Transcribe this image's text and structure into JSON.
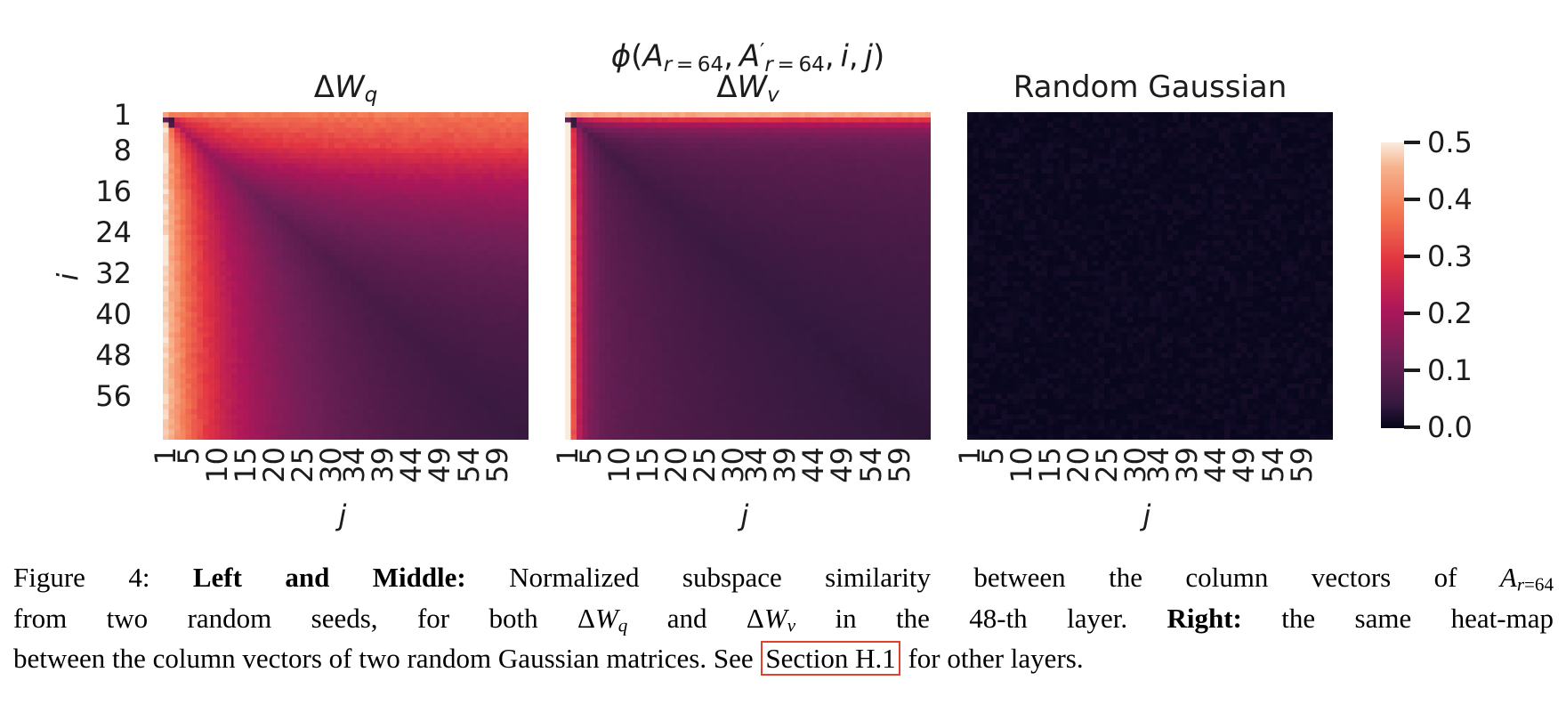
{
  "figure": {
    "titles": {
      "dwq": [
        {
          "t": "Δ",
          "s": "n"
        },
        {
          "t": "W",
          "s": "i"
        },
        {
          "t": "q",
          "s": "subi"
        }
      ],
      "phi_line": [
        {
          "t": "ϕ",
          "s": "i"
        },
        {
          "t": "(",
          "s": "n"
        },
        {
          "t": "A",
          "s": "i"
        },
        {
          "t": "r",
          "s": "subi"
        },
        {
          "t": " = 64",
          "s": "sub"
        },
        {
          "t": ", ",
          "s": "n"
        },
        {
          "t": "A",
          "s": "i"
        },
        {
          "t": "′",
          "s": "sup"
        },
        {
          "t": "r",
          "s": "subi"
        },
        {
          "t": " = 64",
          "s": "sub"
        },
        {
          "t": ", ",
          "s": "n"
        },
        {
          "t": "i",
          "s": "i"
        },
        {
          "t": ", ",
          "s": "n"
        },
        {
          "t": "j",
          "s": "i"
        },
        {
          "t": ")",
          "s": "n"
        }
      ],
      "dwv": [
        {
          "t": "Δ",
          "s": "n"
        },
        {
          "t": "W",
          "s": "i"
        },
        {
          "t": "v",
          "s": "subi"
        }
      ],
      "gaussian": [
        {
          "t": "Random Gaussian",
          "s": "n"
        }
      ]
    },
    "axis": {
      "ylabel": "i",
      "xlabel": "j"
    },
    "caption": {
      "line1": [
        {
          "t": "Figure 4: ",
          "s": "n"
        },
        {
          "t": "Left and Middle: ",
          "s": "b"
        },
        {
          "t": "Normalized subspace similarity between the column vectors of ",
          "s": "n"
        },
        {
          "t": "A",
          "s": "i"
        },
        {
          "t": "r",
          "s": "subi"
        },
        {
          "t": "=64",
          "s": "sub"
        }
      ],
      "line2": [
        {
          "t": "from two random seeds, for both ",
          "s": "n"
        },
        {
          "t": "Δ",
          "s": "n"
        },
        {
          "t": "W",
          "s": "i"
        },
        {
          "t": "q",
          "s": "subi"
        },
        {
          "t": " and ",
          "s": "n"
        },
        {
          "t": "Δ",
          "s": "n"
        },
        {
          "t": "W",
          "s": "i"
        },
        {
          "t": "v",
          "s": "subi"
        },
        {
          "t": " in the 48-th layer. ",
          "s": "n"
        },
        {
          "t": "Right: ",
          "s": "b"
        },
        {
          "t": "the same heat-map",
          "s": "n"
        }
      ],
      "line3": [
        {
          "t": "between the column vectors of two random Gaussian matrices. See ",
          "s": "n"
        },
        {
          "t": "Section H.1",
          "s": "box"
        },
        {
          "t": " for other layers.",
          "s": "n"
        }
      ]
    }
  },
  "chart_data": {
    "type": "heatmap",
    "description": "Three 64x64 heatmaps of normalized subspace similarity phi(A_r=64, A'_r=64, i, j). Left (dWq) and middle (dWv): high similarity (~0.5) for small min(i,j), first row/column bright, decaying toward dark along and below the diagonal, with a small dark blob near cells (2,1)-(3,2). Right: two random Gaussian matrices, similarity ~0 everywhere.",
    "grid": {
      "rows": 64,
      "cols": 64,
      "row_index": "i",
      "col_index": "j"
    },
    "x_tick_values": [
      1,
      5,
      10,
      15,
      20,
      25,
      30,
      34,
      39,
      44,
      49,
      54,
      59
    ],
    "y_tick_values": [
      1,
      8,
      16,
      24,
      32,
      40,
      48,
      56
    ],
    "colorbar": {
      "vmin": 0.0,
      "vmax": 0.5,
      "tick_values": [
        "0.5",
        "0.4",
        "0.3",
        "0.2",
        "0.1",
        "0.0"
      ]
    },
    "colormap_stops": [
      [
        0.0,
        "#03051a"
      ],
      [
        0.083,
        "#35193e"
      ],
      [
        0.25,
        "#701f57"
      ],
      [
        0.417,
        "#ad1759"
      ],
      [
        0.583,
        "#e13342"
      ],
      [
        0.75,
        "#f37651"
      ],
      [
        0.917,
        "#f6b48f"
      ],
      [
        1.0,
        "#faebdd"
      ]
    ],
    "plots": [
      {
        "id": "dwq",
        "title": "dWq",
        "value_model": {
          "c0": 0.055,
          "c1": 0.2,
          "s1": 30,
          "c2": 0.23,
          "s2": 9,
          "upper0": 0.78,
          "lower0": 1.0,
          "ramp": 6,
          "diag": 0.42,
          "noise": 0.06,
          "seed": 1.3,
          "dark_cells": [
            [
              2,
              1
            ],
            [
              2,
              2
            ],
            [
              3,
              2
            ]
          ],
          "dark_factor": 0.22
        }
      },
      {
        "id": "dwv",
        "title": "dWv",
        "value_model": {
          "c0": 0.05,
          "c1": 0.075,
          "s1": 30,
          "c2": 0.34,
          "s2": 1.6,
          "upper0": 0.95,
          "lower0": 1.12,
          "ramp": 6,
          "diag": 0.42,
          "noise": 0.06,
          "seed": 2.7,
          "dark_cells": [
            [
              2,
              1
            ],
            [
              2,
              2
            ],
            [
              3,
              2
            ]
          ],
          "dark_factor": 0.22
        }
      },
      {
        "id": "gaussian",
        "title": "Random Gaussian",
        "value_model": {
          "uniform": 0.004,
          "noise": 0.012,
          "seed": 5.1
        }
      }
    ]
  }
}
